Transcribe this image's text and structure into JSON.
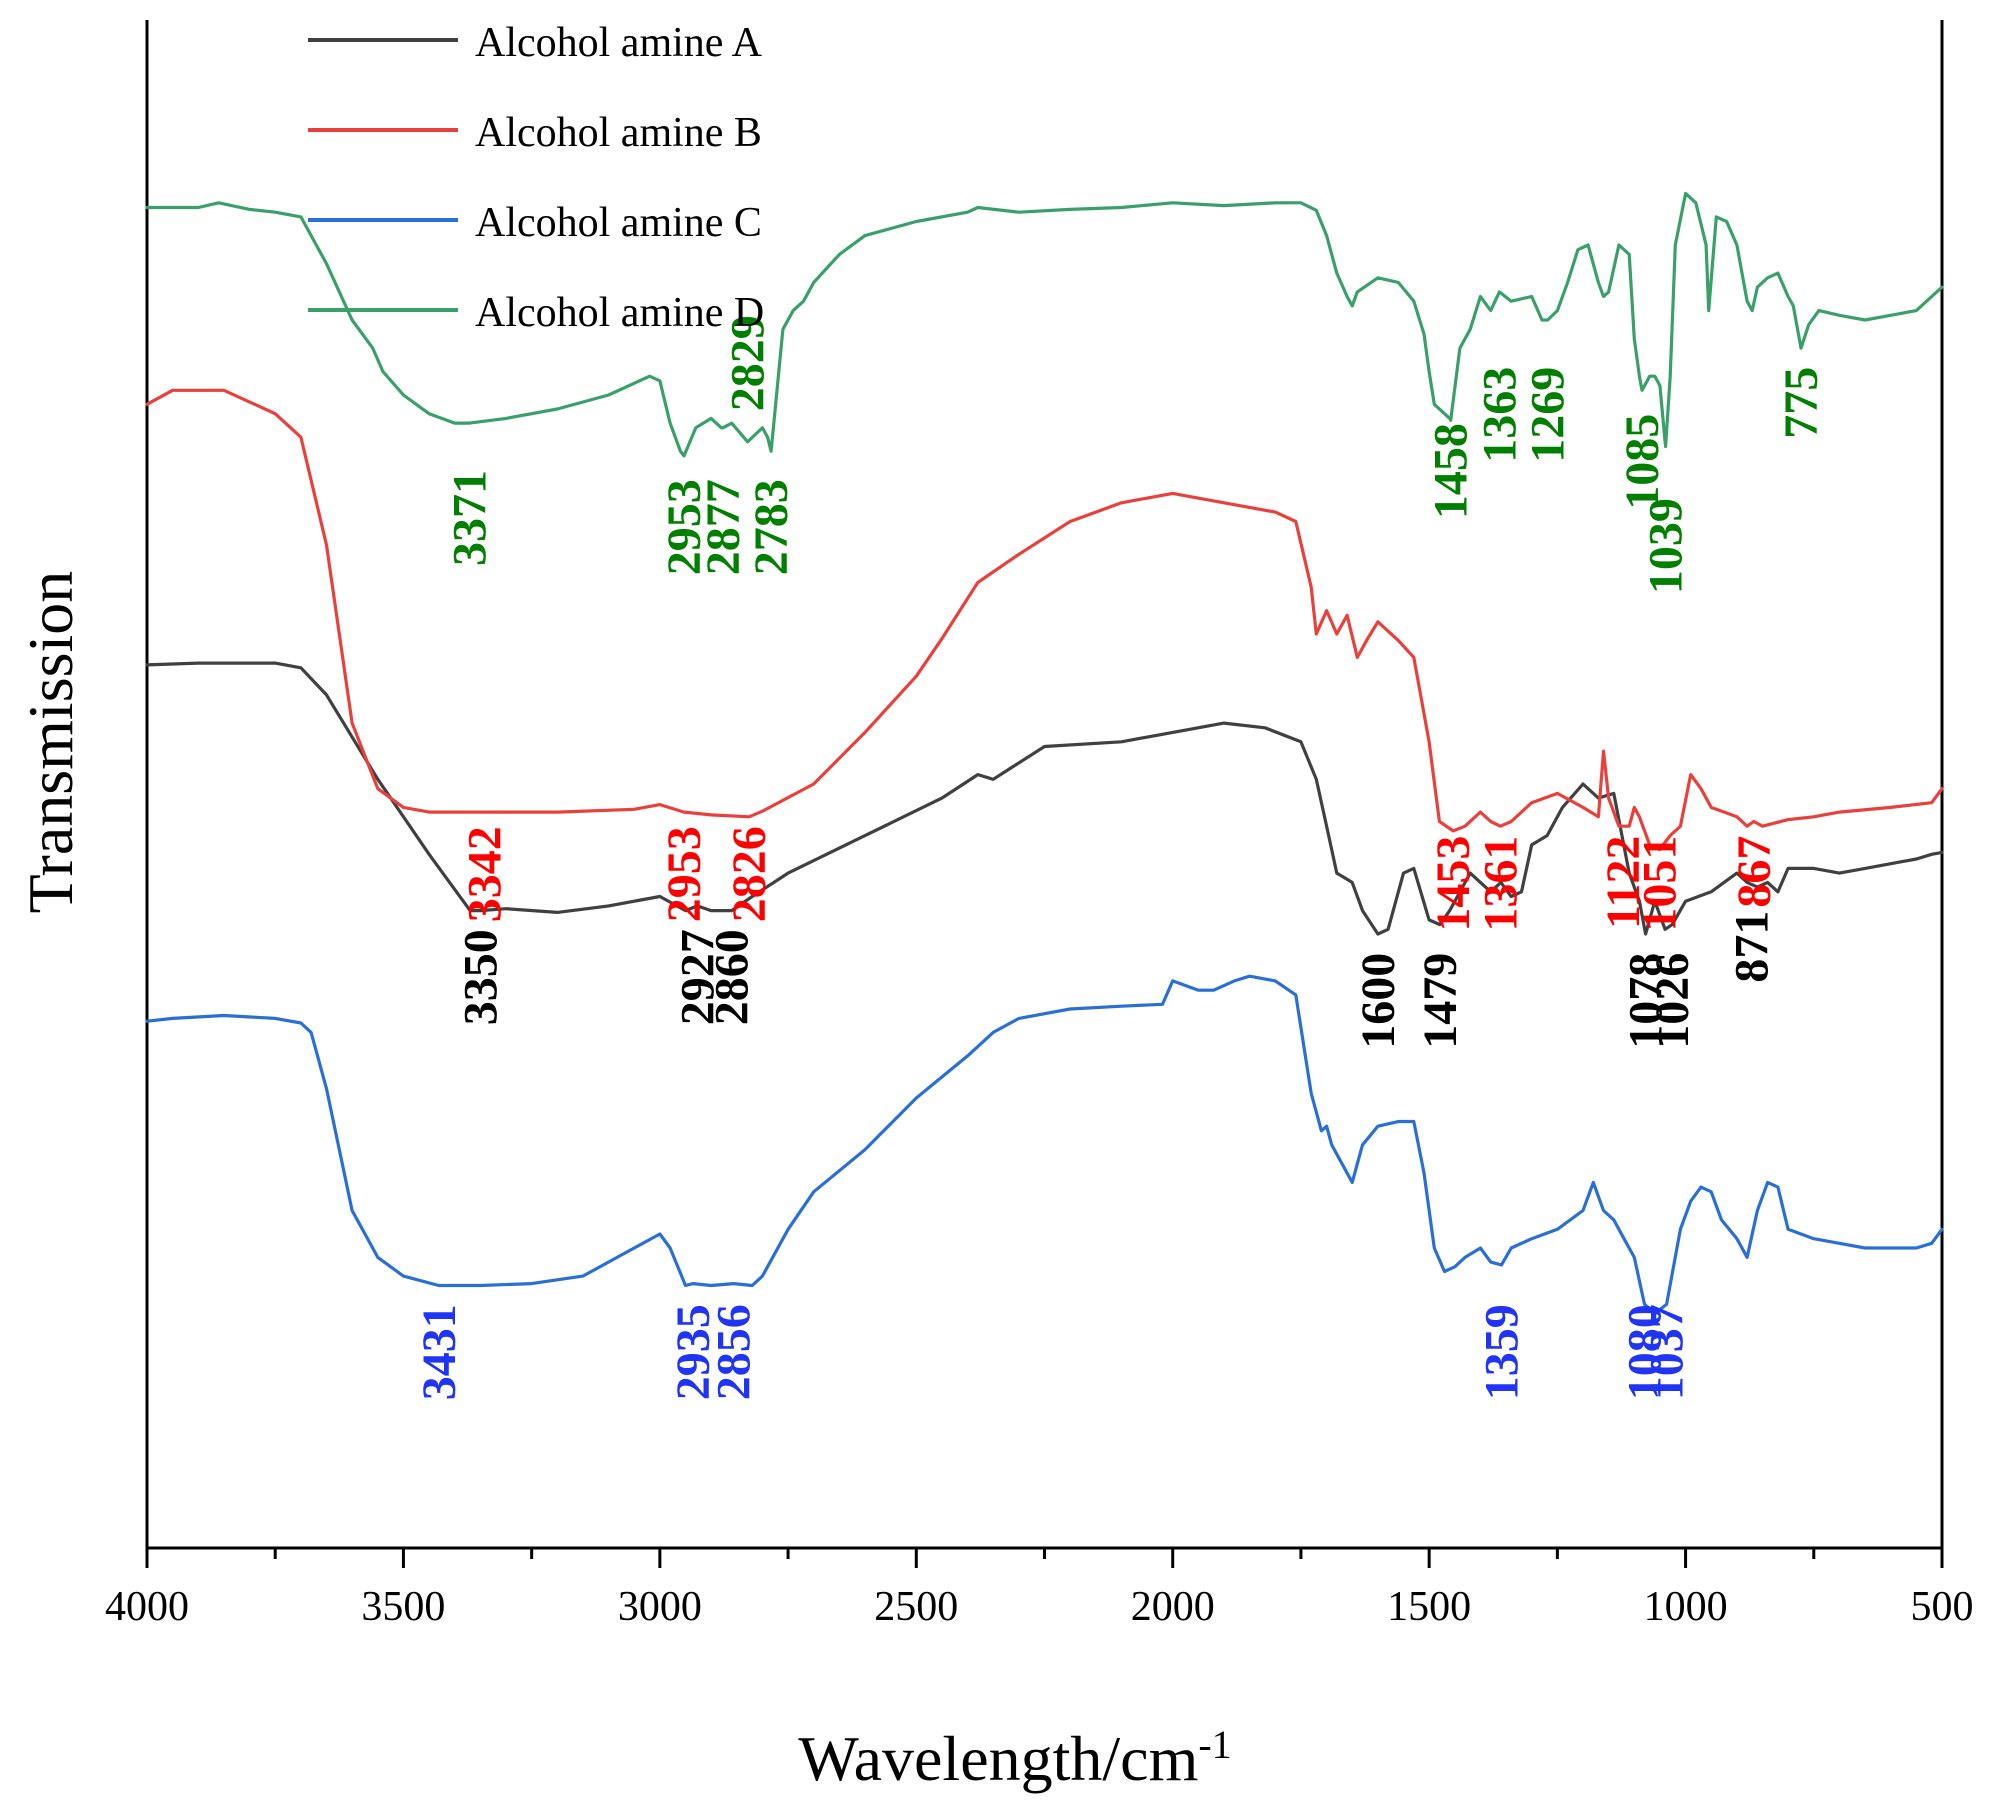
{
  "chart_data": {
    "type": "line",
    "title": "",
    "xlabel_main": "Wavelength/cm",
    "xlabel_sup": "-1",
    "ylabel": "Transmission",
    "xlim": [
      4000,
      500
    ],
    "xticks": [
      4000,
      3500,
      3000,
      2500,
      2000,
      1500,
      1000,
      500
    ],
    "y_ticks_shown": false,
    "legend_position": "top-left",
    "series": [
      {
        "name": "Alcohol amine A",
        "color": "#404040",
        "label_color": "#000000",
        "x": [
          4000,
          3900,
          3750,
          3700,
          3650,
          3550,
          3450,
          3370,
          3350,
          3300,
          3200,
          3100,
          3000,
          2950,
          2927,
          2900,
          2860,
          2820,
          2750,
          2600,
          2450,
          2380,
          2350,
          2250,
          2100,
          2000,
          1900,
          1820,
          1750,
          1720,
          1700,
          1680,
          1650,
          1630,
          1600,
          1580,
          1550,
          1530,
          1500,
          1479,
          1460,
          1420,
          1400,
          1380,
          1360,
          1340,
          1320,
          1300,
          1270,
          1240,
          1200,
          1170,
          1140,
          1110,
          1090,
          1078,
          1060,
          1040,
          1026,
          1000,
          950,
          900,
          880,
          860,
          840,
          820,
          800,
          750,
          700,
          650,
          600,
          550,
          520,
          500
        ],
        "y": [
          0.592,
          0.594,
          0.594,
          0.589,
          0.56,
          0.47,
          0.39,
          0.33,
          0.33,
          0.332,
          0.328,
          0.335,
          0.345,
          0.33,
          0.335,
          0.33,
          0.33,
          0.345,
          0.37,
          0.41,
          0.45,
          0.475,
          0.47,
          0.505,
          0.51,
          0.52,
          0.53,
          0.525,
          0.51,
          0.47,
          0.42,
          0.37,
          0.36,
          0.33,
          0.305,
          0.31,
          0.37,
          0.375,
          0.32,
          0.315,
          0.33,
          0.37,
          0.36,
          0.35,
          0.36,
          0.345,
          0.35,
          0.4,
          0.41,
          0.44,
          0.465,
          0.45,
          0.455,
          0.37,
          0.34,
          0.305,
          0.34,
          0.31,
          0.315,
          0.34,
          0.35,
          0.37,
          0.36,
          0.355,
          0.36,
          0.35,
          0.375,
          0.375,
          0.37,
          0.375,
          0.38,
          0.385,
          0.39,
          0.392
        ]
      },
      {
        "name": "Alcohol amine B",
        "color": "#e8413c",
        "label_color": "#ff0000",
        "x": [
          4000,
          3950,
          3850,
          3750,
          3700,
          3650,
          3600,
          3550,
          3500,
          3450,
          3342,
          3200,
          3050,
          3000,
          2953,
          2900,
          2826,
          2800,
          2700,
          2600,
          2500,
          2450,
          2380,
          2300,
          2200,
          2100,
          2000,
          1900,
          1800,
          1760,
          1730,
          1720,
          1700,
          1680,
          1660,
          1640,
          1620,
          1600,
          1560,
          1530,
          1500,
          1480,
          1453,
          1430,
          1400,
          1380,
          1361,
          1340,
          1300,
          1250,
          1200,
          1170,
          1160,
          1150,
          1130,
          1110,
          1100,
          1090,
          1070,
          1051,
          1030,
          1010,
          990,
          970,
          950,
          900,
          880,
          867,
          850,
          800,
          750,
          700,
          600,
          520,
          500
        ],
        "y": [
          0.87,
          0.885,
          0.885,
          0.86,
          0.835,
          0.72,
          0.53,
          0.46,
          0.44,
          0.435,
          0.435,
          0.435,
          0.438,
          0.443,
          0.435,
          0.432,
          0.43,
          0.436,
          0.465,
          0.52,
          0.58,
          0.62,
          0.68,
          0.71,
          0.745,
          0.765,
          0.775,
          0.765,
          0.755,
          0.745,
          0.675,
          0.625,
          0.65,
          0.625,
          0.645,
          0.6,
          0.62,
          0.638,
          0.618,
          0.6,
          0.51,
          0.425,
          0.415,
          0.42,
          0.435,
          0.425,
          0.42,
          0.425,
          0.445,
          0.455,
          0.44,
          0.43,
          0.5,
          0.45,
          0.42,
          0.42,
          0.44,
          0.43,
          0.4,
          0.395,
          0.41,
          0.42,
          0.475,
          0.46,
          0.44,
          0.43,
          0.42,
          0.425,
          0.42,
          0.427,
          0.43,
          0.435,
          0.44,
          0.445,
          0.46
        ]
      },
      {
        "name": "Alcohol amine C",
        "color": "#2a6fd6",
        "label_color": "#1f34f5",
        "x": [
          4000,
          3950,
          3850,
          3750,
          3700,
          3680,
          3650,
          3600,
          3550,
          3500,
          3431,
          3350,
          3250,
          3150,
          3050,
          3000,
          2980,
          2950,
          2935,
          2900,
          2856,
          2820,
          2800,
          2750,
          2700,
          2600,
          2500,
          2400,
          2350,
          2300,
          2200,
          2100,
          2020,
          2000,
          1950,
          1920,
          1880,
          1850,
          1800,
          1760,
          1730,
          1710,
          1700,
          1690,
          1670,
          1650,
          1630,
          1600,
          1560,
          1530,
          1510,
          1490,
          1470,
          1450,
          1430,
          1400,
          1380,
          1359,
          1340,
          1300,
          1250,
          1200,
          1180,
          1160,
          1140,
          1120,
          1100,
          1080,
          1060,
          1037,
          1010,
          990,
          970,
          950,
          930,
          900,
          880,
          860,
          840,
          820,
          800,
          750,
          700,
          650,
          600,
          550,
          520,
          500
        ],
        "y": [
          0.212,
          0.215,
          0.218,
          0.215,
          0.21,
          0.2,
          0.14,
          0.01,
          -0.04,
          -0.06,
          -0.07,
          -0.07,
          -0.068,
          -0.06,
          -0.03,
          -0.015,
          -0.03,
          -0.07,
          -0.068,
          -0.07,
          -0.068,
          -0.07,
          -0.06,
          -0.01,
          0.03,
          0.075,
          0.13,
          0.175,
          0.2,
          0.215,
          0.225,
          0.228,
          0.23,
          0.255,
          0.245,
          0.245,
          0.255,
          0.26,
          0.255,
          0.24,
          0.135,
          0.095,
          0.1,
          0.08,
          0.06,
          0.04,
          0.08,
          0.1,
          0.105,
          0.105,
          0.05,
          -0.03,
          -0.055,
          -0.05,
          -0.04,
          -0.03,
          -0.045,
          -0.048,
          -0.03,
          -0.02,
          -0.01,
          0.01,
          0.04,
          0.01,
          0.0,
          -0.02,
          -0.04,
          -0.09,
          -0.1,
          -0.09,
          -0.01,
          0.02,
          0.035,
          0.03,
          0.0,
          -0.02,
          -0.04,
          0.01,
          0.04,
          0.035,
          -0.01,
          -0.02,
          -0.025,
          -0.03,
          -0.03,
          -0.03,
          -0.025,
          -0.01
        ]
      },
      {
        "name": "Alcohol amine D",
        "color": "#3aa06a",
        "label_color": "#007f00",
        "x": [
          4000,
          3900,
          3860,
          3800,
          3750,
          3700,
          3650,
          3600,
          3560,
          3540,
          3500,
          3450,
          3400,
          3371,
          3300,
          3200,
          3100,
          3020,
          3000,
          2980,
          2960,
          2953,
          2930,
          2900,
          2880,
          2877,
          2860,
          2829,
          2800,
          2790,
          2783,
          2760,
          2740,
          2720,
          2700,
          2650,
          2600,
          2500,
          2400,
          2380,
          2300,
          2200,
          2100,
          2000,
          1900,
          1800,
          1750,
          1720,
          1700,
          1680,
          1660,
          1650,
          1640,
          1600,
          1560,
          1530,
          1510,
          1500,
          1490,
          1470,
          1460,
          1458,
          1440,
          1420,
          1400,
          1380,
          1363,
          1340,
          1300,
          1280,
          1269,
          1250,
          1230,
          1210,
          1190,
          1170,
          1160,
          1150,
          1130,
          1110,
          1100,
          1090,
          1085,
          1070,
          1060,
          1050,
          1040,
          1039,
          1030,
          1020,
          1000,
          980,
          960,
          955,
          940,
          920,
          900,
          880,
          870,
          860,
          840,
          820,
          800,
          790,
          775,
          760,
          740,
          700,
          650,
          600,
          550,
          520,
          500
        ],
        "y": [
          1.08,
          1.08,
          1.085,
          1.078,
          1.075,
          1.07,
          1.02,
          0.96,
          0.93,
          0.905,
          0.88,
          0.86,
          0.85,
          0.85,
          0.855,
          0.865,
          0.88,
          0.9,
          0.895,
          0.85,
          0.82,
          0.815,
          0.845,
          0.855,
          0.845,
          0.845,
          0.85,
          0.83,
          0.845,
          0.835,
          0.82,
          0.95,
          0.97,
          0.98,
          1.0,
          1.03,
          1.05,
          1.065,
          1.075,
          1.08,
          1.075,
          1.078,
          1.08,
          1.085,
          1.082,
          1.085,
          1.085,
          1.077,
          1.05,
          1.01,
          0.985,
          0.975,
          0.99,
          1.005,
          1.0,
          0.98,
          0.945,
          0.905,
          0.87,
          0.86,
          0.855,
          0.853,
          0.93,
          0.95,
          0.985,
          0.97,
          0.99,
          0.98,
          0.985,
          0.96,
          0.96,
          0.97,
          1.0,
          1.035,
          1.04,
          1.0,
          0.985,
          0.99,
          1.04,
          1.03,
          0.94,
          0.9,
          0.885,
          0.9,
          0.9,
          0.89,
          0.83,
          0.825,
          0.9,
          1.04,
          1.095,
          1.085,
          1.04,
          0.97,
          1.07,
          1.065,
          1.04,
          0.98,
          0.97,
          0.995,
          1.005,
          1.01,
          0.985,
          0.975,
          0.93,
          0.955,
          0.97,
          0.965,
          0.96,
          0.965,
          0.97,
          0.985,
          0.995
        ]
      }
    ],
    "annotations": [
      {
        "text": "3371",
        "series": "D",
        "x": 3371,
        "y": 0.8
      },
      {
        "text": "2953",
        "series": "D",
        "x": 2953,
        "y": 0.79
      },
      {
        "text": "2877",
        "series": "D",
        "x": 2877,
        "y": 0.79
      },
      {
        "text": "2783",
        "series": "D",
        "x": 2783,
        "y": 0.79
      },
      {
        "text": "2829",
        "series": "D",
        "x": 2829,
        "y": 0.965
      },
      {
        "text": "1458",
        "series": "D",
        "x": 1458,
        "y": 0.85
      },
      {
        "text": "1363",
        "series": "D",
        "x": 1363,
        "y": 0.91
      },
      {
        "text": "1269",
        "series": "D",
        "x": 1269,
        "y": 0.91
      },
      {
        "text": "1085",
        "series": "D",
        "x": 1085,
        "y": 0.86
      },
      {
        "text": "1039",
        "series": "D",
        "x": 1039,
        "y": 0.77
      },
      {
        "text": "775",
        "series": "D",
        "x": 775,
        "y": 0.91
      },
      {
        "text": "3342",
        "series": "B",
        "x": 3342,
        "y": 0.42
      },
      {
        "text": "2953",
        "series": "B",
        "x": 2953,
        "y": 0.42
      },
      {
        "text": "2826",
        "series": "B",
        "x": 2826,
        "y": 0.42
      },
      {
        "text": "1453",
        "series": "B",
        "x": 1453,
        "y": 0.41
      },
      {
        "text": "1361",
        "series": "B",
        "x": 1361,
        "y": 0.41
      },
      {
        "text": "1122",
        "series": "B",
        "x": 1122,
        "y": 0.41
      },
      {
        "text": "1051",
        "series": "B",
        "x": 1051,
        "y": 0.41
      },
      {
        "text": "867",
        "series": "B",
        "x": 867,
        "y": 0.41
      },
      {
        "text": "3350",
        "series": "A",
        "x": 3350,
        "y": 0.31
      },
      {
        "text": "2927",
        "series": "A",
        "x": 2927,
        "y": 0.31
      },
      {
        "text": "2860",
        "series": "A",
        "x": 2860,
        "y": 0.31
      },
      {
        "text": "1600",
        "series": "A",
        "x": 1600,
        "y": 0.285
      },
      {
        "text": "1479",
        "series": "A",
        "x": 1479,
        "y": 0.285
      },
      {
        "text": "1078",
        "series": "A",
        "x": 1078,
        "y": 0.285
      },
      {
        "text": "1026",
        "series": "A",
        "x": 1026,
        "y": 0.285
      },
      {
        "text": "871",
        "series": "A",
        "x": 871,
        "y": 0.33
      },
      {
        "text": "3431",
        "series": "C",
        "x": 3431,
        "y": -0.09
      },
      {
        "text": "2935",
        "series": "C",
        "x": 2935,
        "y": -0.09
      },
      {
        "text": "2856",
        "series": "C",
        "x": 2856,
        "y": -0.09
      },
      {
        "text": "1359",
        "series": "C",
        "x": 1359,
        "y": -0.09
      },
      {
        "text": "1080",
        "series": "C",
        "x": 1080,
        "y": -0.09
      },
      {
        "text": "1037",
        "series": "C",
        "x": 1037,
        "y": -0.09
      }
    ],
    "ylim": [
      -0.35,
      1.28
    ]
  }
}
